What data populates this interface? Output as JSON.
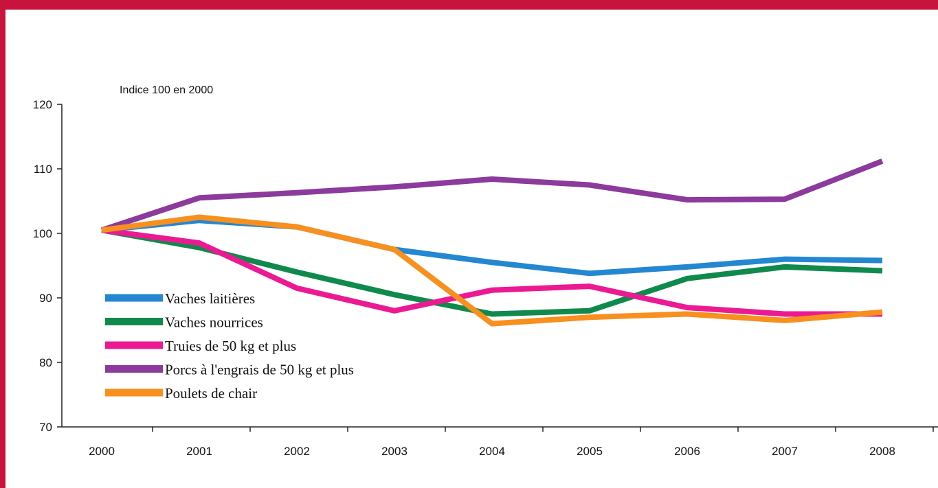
{
  "chart_data": {
    "type": "line",
    "subtitle": "Indice 100 en 2000",
    "categories": [
      "2000",
      "2001",
      "2002",
      "2003",
      "2004",
      "2005",
      "2006",
      "2007",
      "2008"
    ],
    "yticks": [
      "70",
      "80",
      "90",
      "100",
      "110",
      "120"
    ],
    "ylim": [
      70,
      120
    ],
    "grid": false,
    "legend_position": "bottom-left",
    "series": [
      {
        "name": "Vaches laitières",
        "color": "#2387d2",
        "values": [
          100.5,
          102,
          101,
          97.5,
          95.5,
          93.8,
          94.8,
          96,
          95.8
        ]
      },
      {
        "name": "Vaches nourrices",
        "color": "#108a4c",
        "values": [
          100.5,
          97.8,
          94,
          90.5,
          87.5,
          88,
          93,
          94.8,
          94.2
        ]
      },
      {
        "name": "Truies de 50 kg et plus",
        "color": "#ec1a92",
        "values": [
          100.5,
          98.5,
          91.5,
          88,
          91.2,
          91.8,
          88.5,
          87.5,
          87.5
        ]
      },
      {
        "name": "Porcs à l'engrais de 50 kg et plus",
        "color": "#8c3a9c",
        "values": [
          100.5,
          105.5,
          106.3,
          107.2,
          108.4,
          107.5,
          105.2,
          105.3,
          111.2
        ]
      },
      {
        "name": "Poulets de chair",
        "color": "#f7901e",
        "values": [
          100.5,
          102.5,
          101,
          97.5,
          86,
          87,
          87.5,
          86.5,
          87.8
        ]
      }
    ]
  }
}
